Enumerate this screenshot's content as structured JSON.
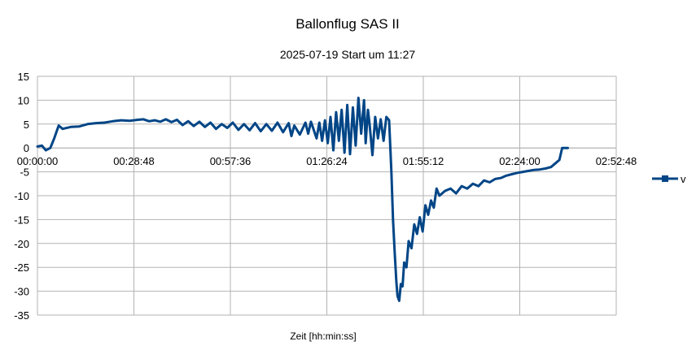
{
  "chart_data": {
    "type": "line",
    "title": "Ballonflug SAS II",
    "subtitle": "2025-07-19 Start um 11:27",
    "xlabel": "Zeit [hh:min:ss]",
    "ylabel": "",
    "x_unit": "seconds",
    "xlim": [
      0,
      10368
    ],
    "ylim": [
      -35,
      15
    ],
    "grid": true,
    "legend_position": "right",
    "colors": {
      "series": "#004586",
      "grid": "#b3b3b3",
      "axis": "#b3b3b3"
    },
    "x_ticks": [
      {
        "value": 0,
        "label": "00:00:00"
      },
      {
        "value": 1728,
        "label": "00:28:48"
      },
      {
        "value": 3456,
        "label": "00:57:36"
      },
      {
        "value": 5184,
        "label": "01:26:24"
      },
      {
        "value": 6912,
        "label": "01:55:12"
      },
      {
        "value": 8640,
        "label": "02:24:00"
      },
      {
        "value": 10368,
        "label": "02:52:48"
      }
    ],
    "y_ticks": [
      15,
      10,
      5,
      0,
      -5,
      -10,
      -15,
      -20,
      -25,
      -30,
      -35
    ],
    "series": [
      {
        "name": "v",
        "points": [
          [
            0,
            0.3
          ],
          [
            80,
            0.5
          ],
          [
            150,
            -0.5
          ],
          [
            230,
            0.0
          ],
          [
            300,
            2.0
          ],
          [
            380,
            4.7
          ],
          [
            450,
            4.0
          ],
          [
            600,
            4.4
          ],
          [
            750,
            4.5
          ],
          [
            900,
            5.0
          ],
          [
            1050,
            5.2
          ],
          [
            1200,
            5.3
          ],
          [
            1350,
            5.6
          ],
          [
            1500,
            5.8
          ],
          [
            1650,
            5.7
          ],
          [
            1800,
            5.9
          ],
          [
            1900,
            6.0
          ],
          [
            2000,
            5.6
          ],
          [
            2100,
            5.8
          ],
          [
            2200,
            5.5
          ],
          [
            2300,
            6.0
          ],
          [
            2400,
            5.4
          ],
          [
            2500,
            5.9
          ],
          [
            2600,
            4.8
          ],
          [
            2700,
            5.6
          ],
          [
            2800,
            4.6
          ],
          [
            2900,
            5.5
          ],
          [
            3000,
            4.4
          ],
          [
            3100,
            5.3
          ],
          [
            3200,
            4.0
          ],
          [
            3300,
            5.0
          ],
          [
            3400,
            4.2
          ],
          [
            3500,
            5.3
          ],
          [
            3600,
            3.8
          ],
          [
            3700,
            5.0
          ],
          [
            3800,
            3.7
          ],
          [
            3900,
            5.2
          ],
          [
            4000,
            3.5
          ],
          [
            4100,
            5.0
          ],
          [
            4200,
            3.6
          ],
          [
            4300,
            5.3
          ],
          [
            4400,
            3.3
          ],
          [
            4500,
            5.2
          ],
          [
            4550,
            2.5
          ],
          [
            4600,
            4.7
          ],
          [
            4700,
            2.8
          ],
          [
            4800,
            5.3
          ],
          [
            4850,
            3.0
          ],
          [
            4900,
            5.5
          ],
          [
            5000,
            2.0
          ],
          [
            5050,
            5.3
          ],
          [
            5100,
            1.5
          ],
          [
            5150,
            5.8
          ],
          [
            5200,
            1.0
          ],
          [
            5250,
            6.5
          ],
          [
            5300,
            -0.5
          ],
          [
            5350,
            7.5
          ],
          [
            5400,
            1.5
          ],
          [
            5450,
            8.0
          ],
          [
            5500,
            -1.0
          ],
          [
            5550,
            9.0
          ],
          [
            5600,
            -1.3
          ],
          [
            5650,
            8.5
          ],
          [
            5700,
            0.5
          ],
          [
            5750,
            10.5
          ],
          [
            5800,
            3.0
          ],
          [
            5850,
            10.0
          ],
          [
            5880,
            1.0
          ],
          [
            5920,
            8.0
          ],
          [
            5950,
            5.0
          ],
          [
            6000,
            -1.5
          ],
          [
            6050,
            6.5
          ],
          [
            6100,
            2.0
          ],
          [
            6150,
            6.0
          ],
          [
            6200,
            1.5
          ],
          [
            6250,
            6.5
          ],
          [
            6300,
            5.8
          ],
          [
            6340,
            -5.0
          ],
          [
            6370,
            -15.0
          ],
          [
            6400,
            -22.0
          ],
          [
            6430,
            -28.0
          ],
          [
            6450,
            -31.0
          ],
          [
            6480,
            -32.0
          ],
          [
            6510,
            -28.5
          ],
          [
            6540,
            -29.0
          ],
          [
            6570,
            -24.0
          ],
          [
            6610,
            -25.0
          ],
          [
            6650,
            -19.5
          ],
          [
            6700,
            -21.0
          ],
          [
            6750,
            -16.0
          ],
          [
            6800,
            -18.0
          ],
          [
            6850,
            -14.5
          ],
          [
            6900,
            -17.5
          ],
          [
            6950,
            -12.0
          ],
          [
            7000,
            -14.0
          ],
          [
            7050,
            -11.0
          ],
          [
            7100,
            -12.5
          ],
          [
            7150,
            -8.5
          ],
          [
            7200,
            -10.0
          ],
          [
            7300,
            -9.0
          ],
          [
            7400,
            -8.5
          ],
          [
            7500,
            -9.5
          ],
          [
            7600,
            -8.0
          ],
          [
            7700,
            -8.5
          ],
          [
            7800,
            -7.5
          ],
          [
            7900,
            -8.0
          ],
          [
            8000,
            -6.8
          ],
          [
            8100,
            -7.2
          ],
          [
            8200,
            -6.5
          ],
          [
            8300,
            -6.3
          ],
          [
            8400,
            -5.8
          ],
          [
            8500,
            -5.5
          ],
          [
            8600,
            -5.2
          ],
          [
            8700,
            -5.0
          ],
          [
            8800,
            -4.8
          ],
          [
            8900,
            -4.6
          ],
          [
            9000,
            -4.5
          ],
          [
            9100,
            -4.3
          ],
          [
            9200,
            -4.0
          ],
          [
            9300,
            -3.0
          ],
          [
            9350,
            -2.5
          ],
          [
            9400,
            0.0
          ],
          [
            9500,
            0.0
          ]
        ]
      }
    ]
  }
}
